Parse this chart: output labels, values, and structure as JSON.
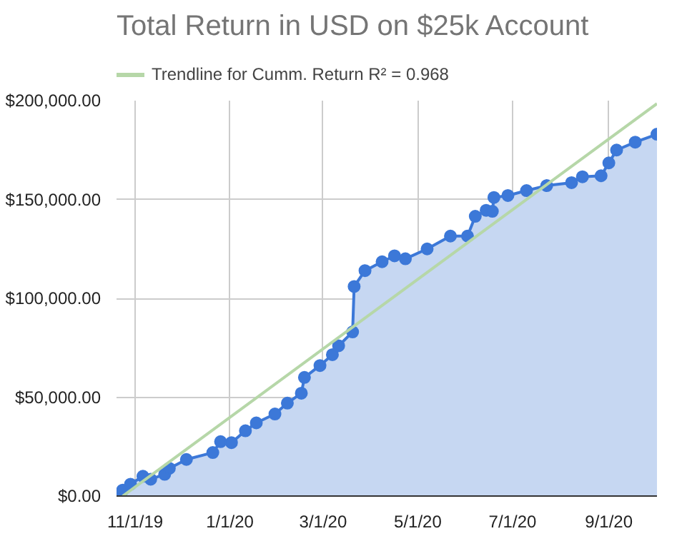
{
  "chart_data": {
    "type": "area",
    "title": "Total Return in USD on $25k Account",
    "xlim": [
      "2019-10-20",
      "2020-10-02"
    ],
    "xticks": [
      {
        "value": "2019-11-01",
        "label": "11/1/19"
      },
      {
        "value": "2020-01-01",
        "label": "1/1/20"
      },
      {
        "value": "2020-03-01",
        "label": "3/1/20"
      },
      {
        "value": "2020-05-01",
        "label": "5/1/20"
      },
      {
        "value": "2020-07-01",
        "label": "7/1/20"
      },
      {
        "value": "2020-09-01",
        "label": "9/1/20"
      }
    ],
    "ylim": [
      0,
      200000
    ],
    "yticks": [
      {
        "value": 0,
        "label": "$0.00"
      },
      {
        "value": 50000,
        "label": "$50,000.00"
      },
      {
        "value": 100000,
        "label": "$100,000.00"
      },
      {
        "value": 150000,
        "label": "$150,000.00"
      },
      {
        "value": 200000,
        "label": "$200,000.00"
      }
    ],
    "grid": true,
    "legend": "top",
    "marker": "circle",
    "series": [
      {
        "color": "#3c78d8",
        "x": [
          "2019-10-21",
          "2019-10-24",
          "2019-10-29",
          "2019-11-06",
          "2019-11-11",
          "2019-11-20",
          "2019-11-23",
          "2019-12-04",
          "2019-12-21",
          "2019-12-26",
          "2020-01-02",
          "2020-01-11",
          "2020-01-18",
          "2020-01-30",
          "2020-02-07",
          "2020-02-16",
          "2020-02-18",
          "2020-02-28",
          "2020-03-07",
          "2020-03-11",
          "2020-03-20",
          "2020-03-21",
          "2020-03-28",
          "2020-04-08",
          "2020-04-16",
          "2020-04-23",
          "2020-05-07",
          "2020-05-22",
          "2020-06-02",
          "2020-06-07",
          "2020-06-14",
          "2020-06-18",
          "2020-06-19",
          "2020-06-28",
          "2020-07-10",
          "2020-07-23",
          "2020-08-08",
          "2020-08-15",
          "2020-08-27",
          "2020-09-01",
          "2020-09-06",
          "2020-09-18",
          "2020-10-02"
        ],
        "values": [
          1000,
          3000,
          6000,
          10000,
          8500,
          11000,
          14000,
          18500,
          22000,
          27500,
          27000,
          33000,
          37000,
          41500,
          47000,
          52000,
          60000,
          66000,
          71500,
          76000,
          83000,
          106000,
          114000,
          118500,
          121500,
          120000,
          125000,
          131500,
          131500,
          141500,
          144500,
          144000,
          151000,
          152000,
          154500,
          157000,
          158500,
          161500,
          162000,
          168500,
          175000,
          179000,
          183000
        ]
      },
      {
        "type": "line",
        "name": "Trendline for Cumm. Return R² = 0.968",
        "color": "#b6d7a8",
        "marker": "none",
        "x": [
          "2019-10-24",
          "2020-10-02"
        ],
        "values": [
          0,
          198500
        ]
      }
    ]
  }
}
